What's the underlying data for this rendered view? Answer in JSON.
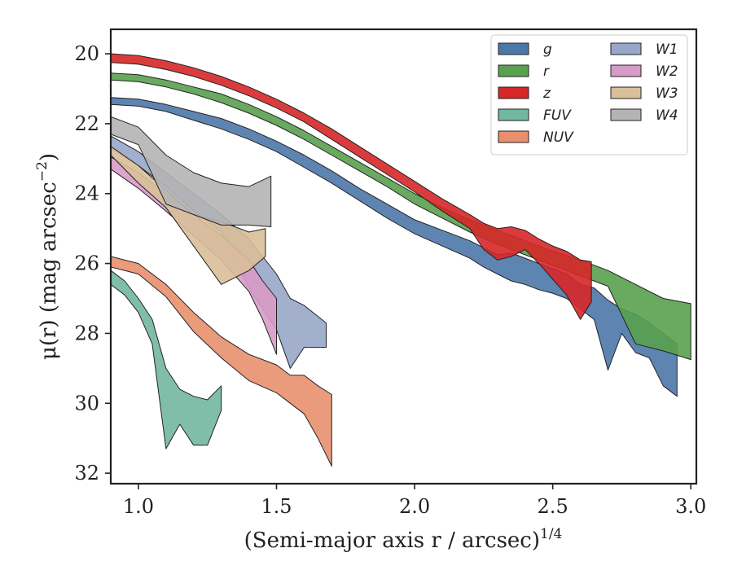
{
  "chart_data": {
    "type": "area",
    "xlabel": "(Semi-major axis r / arcsec)",
    "xlabel_exponent": "1/4",
    "ylabel": "μ(r) (mag arcsec",
    "ylabel_exponent": "−2",
    "ylabel_close": ")",
    "xlim": [
      0.9,
      3.02
    ],
    "ylim": [
      19.3,
      32.3
    ],
    "y_inverted": true,
    "x_ticks": [
      1.0,
      1.5,
      2.0,
      2.5,
      3.0
    ],
    "x_tick_labels": [
      "1.0",
      "1.5",
      "2.0",
      "2.5",
      "3.0"
    ],
    "y_ticks": [
      20,
      22,
      24,
      26,
      28,
      30,
      32
    ],
    "y_tick_labels": [
      "20",
      "22",
      "24",
      "26",
      "28",
      "30",
      "32"
    ],
    "grid": false,
    "legend_position": "top-right",
    "legend_columns": 2,
    "series": [
      {
        "name": "g",
        "color": "#4c78a8",
        "x": [
          0.9,
          1.0,
          1.1,
          1.2,
          1.3,
          1.4,
          1.5,
          1.6,
          1.7,
          1.8,
          1.9,
          2.0,
          2.1,
          2.2,
          2.25,
          2.3,
          2.35,
          2.4,
          2.45,
          2.5,
          2.55,
          2.6,
          2.65,
          2.7,
          2.75,
          2.8,
          2.85,
          2.9,
          2.95
        ],
        "lower": [
          21.25,
          21.3,
          21.45,
          21.65,
          21.85,
          22.15,
          22.5,
          22.9,
          23.35,
          23.85,
          24.3,
          24.75,
          25.05,
          25.35,
          25.55,
          25.75,
          25.7,
          25.85,
          26.0,
          26.15,
          26.3,
          26.6,
          26.7,
          27.05,
          27.3,
          27.45,
          27.7,
          28.0,
          28.3
        ],
        "upper": [
          21.45,
          21.5,
          21.65,
          21.9,
          22.15,
          22.45,
          22.8,
          23.25,
          23.7,
          24.2,
          24.7,
          25.15,
          25.5,
          25.85,
          26.1,
          26.3,
          26.5,
          26.6,
          26.75,
          26.85,
          27.0,
          27.3,
          27.6,
          29.05,
          28.0,
          28.55,
          28.7,
          29.5,
          29.8
        ]
      },
      {
        "name": "r",
        "color": "#59a14f",
        "x": [
          0.9,
          1.0,
          1.1,
          1.2,
          1.3,
          1.4,
          1.5,
          1.6,
          1.7,
          1.8,
          1.9,
          2.0,
          2.1,
          2.2,
          2.3,
          2.4,
          2.5,
          2.6,
          2.7,
          2.8,
          2.9,
          3.0
        ],
        "lower": [
          20.55,
          20.6,
          20.75,
          20.95,
          21.15,
          21.45,
          21.8,
          22.2,
          22.65,
          23.1,
          23.55,
          24.0,
          24.4,
          24.75,
          25.05,
          25.35,
          25.65,
          25.9,
          26.2,
          26.6,
          27.0,
          27.15
        ],
        "upper": [
          20.75,
          20.8,
          20.95,
          21.15,
          21.4,
          21.7,
          22.05,
          22.45,
          22.9,
          23.35,
          23.8,
          24.3,
          24.7,
          25.1,
          25.45,
          25.75,
          26.05,
          26.35,
          26.65,
          28.3,
          28.5,
          28.75
        ]
      },
      {
        "name": "z",
        "color": "#d62728",
        "x": [
          0.9,
          1.0,
          1.1,
          1.2,
          1.3,
          1.4,
          1.5,
          1.6,
          1.7,
          1.8,
          1.9,
          2.0,
          2.1,
          2.2,
          2.25,
          2.3,
          2.35,
          2.4,
          2.45,
          2.5,
          2.55,
          2.6,
          2.64
        ],
        "lower": [
          20.0,
          20.05,
          20.2,
          20.4,
          20.65,
          20.95,
          21.3,
          21.7,
          22.15,
          22.65,
          23.15,
          23.65,
          24.15,
          24.6,
          24.85,
          25.0,
          24.95,
          25.05,
          25.3,
          25.5,
          25.65,
          25.9,
          25.95
        ],
        "upper": [
          20.25,
          20.3,
          20.45,
          20.65,
          20.9,
          21.2,
          21.55,
          21.95,
          22.45,
          22.95,
          23.45,
          23.95,
          24.5,
          25.0,
          25.6,
          25.9,
          25.8,
          25.6,
          26.0,
          26.45,
          26.9,
          27.6,
          27.1
        ]
      },
      {
        "name": "FUV",
        "color": "#72b7a1",
        "x": [
          0.9,
          0.95,
          1.0,
          1.05,
          1.1,
          1.15,
          1.2,
          1.25,
          1.3
        ],
        "lower": [
          26.2,
          26.5,
          27.0,
          27.6,
          29.0,
          29.6,
          29.8,
          29.9,
          29.5
        ],
        "upper": [
          26.6,
          26.9,
          27.4,
          28.3,
          31.3,
          30.6,
          31.2,
          31.2,
          30.2
        ]
      },
      {
        "name": "NUV",
        "color": "#e8906e",
        "x": [
          0.9,
          1.0,
          1.1,
          1.2,
          1.3,
          1.4,
          1.5,
          1.55,
          1.6,
          1.65,
          1.7
        ],
        "lower": [
          25.8,
          26.0,
          26.6,
          27.4,
          28.1,
          28.6,
          28.9,
          29.2,
          29.2,
          29.5,
          29.75
        ],
        "upper": [
          26.1,
          26.3,
          26.95,
          27.95,
          28.7,
          29.35,
          29.7,
          30.0,
          30.3,
          31.0,
          31.8
        ]
      },
      {
        "name": "W1",
        "color": "#98a6c8",
        "x": [
          0.9,
          1.0,
          1.1,
          1.2,
          1.3,
          1.4,
          1.5,
          1.55,
          1.6,
          1.68
        ],
        "lower": [
          22.35,
          22.8,
          23.4,
          24.0,
          24.6,
          25.3,
          26.3,
          27.0,
          27.2,
          27.7
        ],
        "upper": [
          22.7,
          23.2,
          23.8,
          24.5,
          25.1,
          26.7,
          27.9,
          29.0,
          28.4,
          28.4
        ]
      },
      {
        "name": "W2",
        "color": "#d89bc8",
        "x": [
          0.9,
          1.0,
          1.1,
          1.2,
          1.3,
          1.4,
          1.45,
          1.5
        ],
        "lower": [
          22.95,
          23.4,
          24.0,
          24.6,
          25.2,
          25.9,
          26.5,
          27.0
        ],
        "upper": [
          23.3,
          23.85,
          24.5,
          25.2,
          25.9,
          26.8,
          27.6,
          28.6
        ]
      },
      {
        "name": "W3",
        "color": "#d9bf9a",
        "x": [
          0.9,
          1.0,
          1.1,
          1.2,
          1.3,
          1.4,
          1.46
        ],
        "lower": [
          22.65,
          23.2,
          23.9,
          24.6,
          24.8,
          25.1,
          25.0
        ],
        "upper": [
          22.9,
          23.7,
          24.4,
          25.5,
          26.6,
          26.2,
          25.8
        ]
      },
      {
        "name": "W4",
        "color": "#b4b4b4",
        "x": [
          0.9,
          1.0,
          1.1,
          1.2,
          1.3,
          1.4,
          1.48
        ],
        "lower": [
          21.8,
          22.1,
          22.9,
          23.4,
          23.7,
          23.8,
          23.5
        ],
        "upper": [
          22.3,
          22.6,
          24.3,
          24.6,
          24.9,
          24.9,
          24.95
        ]
      }
    ]
  }
}
